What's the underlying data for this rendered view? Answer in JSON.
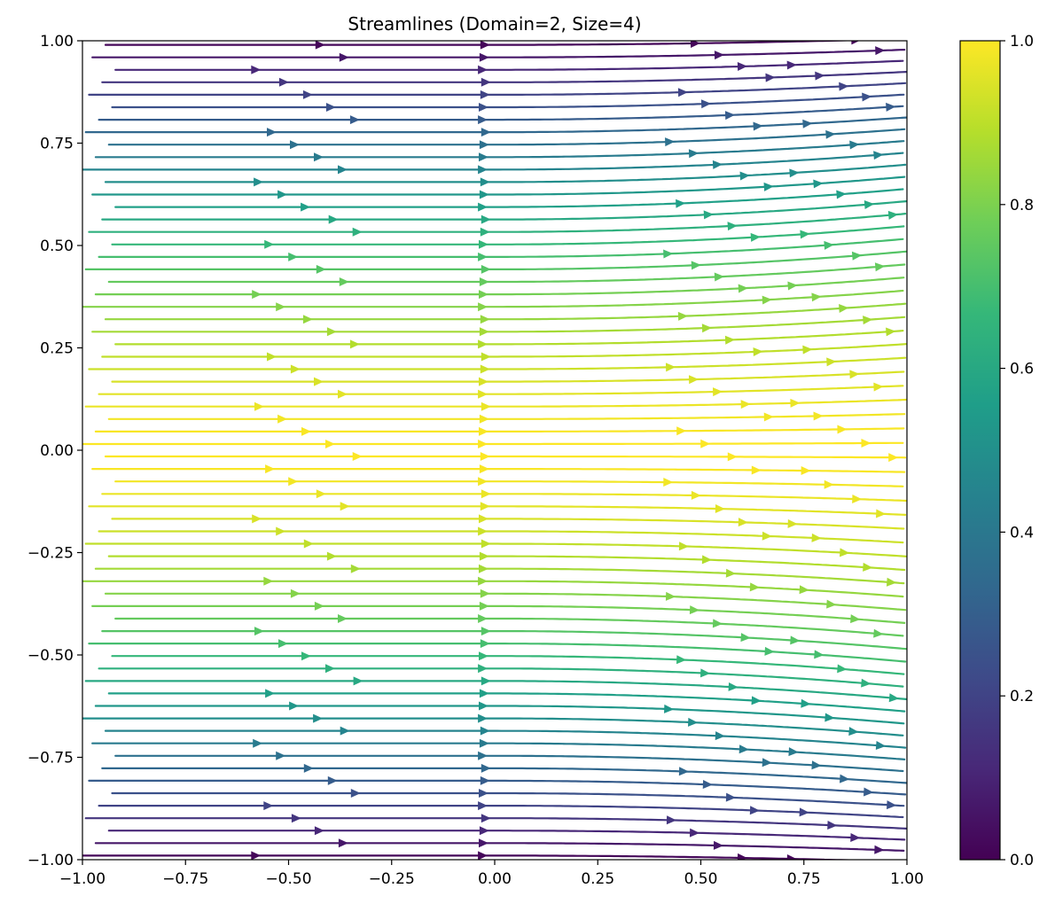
{
  "chart_data": {
    "type": "streamplot",
    "title": "Streamlines (Domain=2, Size=4)",
    "xlabel": "",
    "ylabel": "",
    "xlim": [
      -1.0,
      1.0
    ],
    "ylim": [
      -1.0,
      1.0
    ],
    "x_ticks": [
      -1.0,
      -0.75,
      -0.5,
      -0.25,
      0.0,
      0.25,
      0.5,
      0.75,
      1.0
    ],
    "x_tick_labels": [
      "−1.00",
      "−0.75",
      "−0.50",
      "−0.25",
      "0.00",
      "0.25",
      "0.50",
      "0.75",
      "1.00"
    ],
    "y_ticks": [
      -1.0,
      -0.75,
      -0.5,
      -0.25,
      0.0,
      0.25,
      0.5,
      0.75,
      1.0
    ],
    "y_tick_labels": [
      "−1.00",
      "−0.75",
      "−0.50",
      "−0.25",
      "0.00",
      "0.25",
      "0.50",
      "0.75",
      "1.00"
    ],
    "grid": false,
    "colormap": "viridis",
    "color_stops": [
      "#440154",
      "#482878",
      "#3e4a89",
      "#31688e",
      "#26828e",
      "#1f9e89",
      "#35b779",
      "#6ece58",
      "#b5de2b",
      "#fde725"
    ],
    "colorbar": {
      "range": [
        0.0,
        1.0
      ],
      "ticks": [
        0.0,
        0.2,
        0.4,
        0.6,
        0.8,
        1.0
      ],
      "tick_labels": [
        "0.0",
        "0.2",
        "0.4",
        "0.6",
        "0.8",
        "1.0"
      ]
    },
    "flow": {
      "direction": "left-to-right",
      "value_at_center": 1.0,
      "value_at_top_bottom_edges": 0.0,
      "right_side_divergence": 0.3
    }
  }
}
